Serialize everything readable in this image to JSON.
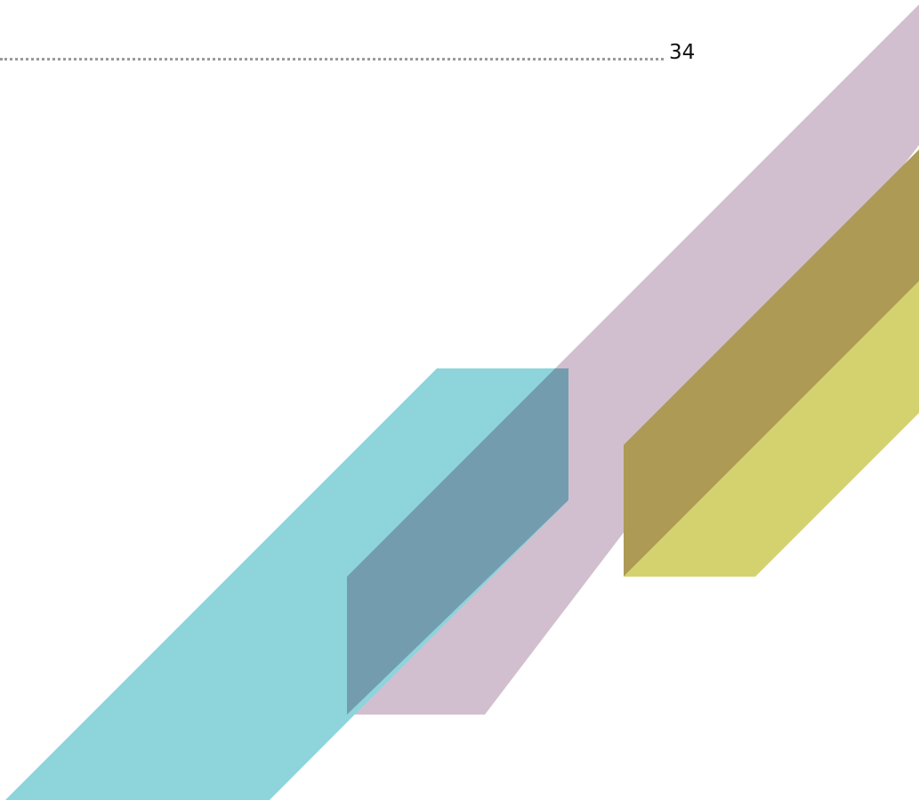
{
  "toc_entry": {
    "page_number": "34"
  },
  "decor": {
    "colors": {
      "mauve": "#d1bfcf",
      "cyan": "#8dd4db",
      "olive": "#ac9a55",
      "yellow": "#d4d26f",
      "overlap_cyan_mauve": "#739daf"
    }
  }
}
